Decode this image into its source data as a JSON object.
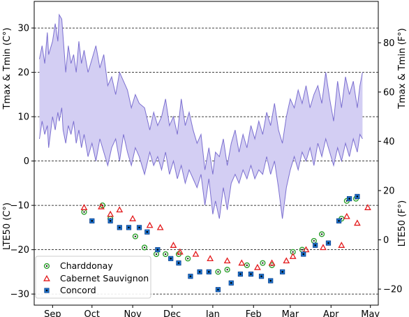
{
  "chart_data": {
    "type": "scatter",
    "y_axis_left": {
      "label": "Tmax & Tmin (C°) / LTE50 (C°)",
      "label_upper": "Tmax & Tmin (C°)",
      "label_lower": "LTE50 (C°)",
      "ticks": [
        30,
        20,
        10,
        0,
        -10,
        -20,
        -30
      ],
      "tick_labels": [
        "30",
        "20",
        "10",
        "0",
        "−10",
        "−20",
        "−30"
      ],
      "ylim": [
        -32.5,
        36
      ]
    },
    "y_axis_right": {
      "label_upper": "Tmax & Tmin (F°)",
      "label_lower": "LTE50 (F°)",
      "ticks_f": [
        80,
        60,
        40,
        20,
        0,
        -20
      ],
      "tick_labels": [
        "80",
        "60",
        "40",
        "20",
        "0",
        "−20"
      ]
    },
    "x_axis": {
      "tick_labels": [
        "Sep",
        "Oct",
        "Nov",
        "Dec",
        "Jan",
        "Feb",
        "Mar",
        "Apr",
        "May"
      ],
      "tick_days": [
        0,
        30,
        61,
        91,
        122,
        153,
        181,
        212,
        242
      ],
      "xlim": [
        -14,
        248
      ]
    },
    "grid": "horizontal dashed at y ticks",
    "temperature_band": {
      "color": "#7b6fd0",
      "fill": "#d3cef3",
      "points": [
        {
          "day": -10,
          "tmin": 5,
          "tmax": 23
        },
        {
          "day": -8,
          "tmin": 9,
          "tmax": 26
        },
        {
          "day": -6,
          "tmin": 6,
          "tmax": 22
        },
        {
          "day": -4,
          "tmin": 8,
          "tmax": 29
        },
        {
          "day": -3,
          "tmin": 3,
          "tmax": 24
        },
        {
          "day": 0,
          "tmin": 10,
          "tmax": 27
        },
        {
          "day": 2,
          "tmin": 7,
          "tmax": 31
        },
        {
          "day": 4,
          "tmin": 11,
          "tmax": 27
        },
        {
          "day": 5,
          "tmin": 9,
          "tmax": 33
        },
        {
          "day": 7,
          "tmin": 12,
          "tmax": 32
        },
        {
          "day": 8,
          "tmin": 7,
          "tmax": 28
        },
        {
          "day": 10,
          "tmin": 4,
          "tmax": 20
        },
        {
          "day": 12,
          "tmin": 8,
          "tmax": 26
        },
        {
          "day": 14,
          "tmin": 6,
          "tmax": 22
        },
        {
          "day": 16,
          "tmin": 9,
          "tmax": 24
        },
        {
          "day": 18,
          "tmin": 4,
          "tmax": 20
        },
        {
          "day": 20,
          "tmin": 7,
          "tmax": 27
        },
        {
          "day": 22,
          "tmin": 3,
          "tmax": 22
        },
        {
          "day": 24,
          "tmin": 6,
          "tmax": 25
        },
        {
          "day": 27,
          "tmin": 1,
          "tmax": 20
        },
        {
          "day": 30,
          "tmin": 4,
          "tmax": 23
        },
        {
          "day": 33,
          "tmin": 0,
          "tmax": 26
        },
        {
          "day": 36,
          "tmin": 5,
          "tmax": 21
        },
        {
          "day": 39,
          "tmin": 2,
          "tmax": 24
        },
        {
          "day": 42,
          "tmin": -1,
          "tmax": 17
        },
        {
          "day": 45,
          "tmin": 3,
          "tmax": 19
        },
        {
          "day": 48,
          "tmin": 5,
          "tmax": 15
        },
        {
          "day": 51,
          "tmin": 0,
          "tmax": 20
        },
        {
          "day": 54,
          "tmin": 6,
          "tmax": 18
        },
        {
          "day": 57,
          "tmin": 2,
          "tmax": 16
        },
        {
          "day": 60,
          "tmin": -1,
          "tmax": 12
        },
        {
          "day": 63,
          "tmin": 3,
          "tmax": 15
        },
        {
          "day": 66,
          "tmin": 1,
          "tmax": 13
        },
        {
          "day": 70,
          "tmin": -3,
          "tmax": 12
        },
        {
          "day": 74,
          "tmin": 2,
          "tmax": 7
        },
        {
          "day": 77,
          "tmin": -1,
          "tmax": 11
        },
        {
          "day": 80,
          "tmin": 1,
          "tmax": 8
        },
        {
          "day": 83,
          "tmin": -2,
          "tmax": 10
        },
        {
          "day": 86,
          "tmin": 2,
          "tmax": 14
        },
        {
          "day": 89,
          "tmin": -3,
          "tmax": 8
        },
        {
          "day": 92,
          "tmin": 0,
          "tmax": 10
        },
        {
          "day": 95,
          "tmin": -4,
          "tmax": 6
        },
        {
          "day": 98,
          "tmin": -1,
          "tmax": 14
        },
        {
          "day": 101,
          "tmin": -5,
          "tmax": 8
        },
        {
          "day": 104,
          "tmin": -2,
          "tmax": 11
        },
        {
          "day": 107,
          "tmin": -4,
          "tmax": 7
        },
        {
          "day": 110,
          "tmin": -6,
          "tmax": 4
        },
        {
          "day": 113,
          "tmin": -3,
          "tmax": 6
        },
        {
          "day": 116,
          "tmin": -10,
          "tmax": -2
        },
        {
          "day": 119,
          "tmin": -4,
          "tmax": 3
        },
        {
          "day": 122,
          "tmin": -12,
          "tmax": -3
        },
        {
          "day": 124,
          "tmin": -9,
          "tmax": 2
        },
        {
          "day": 127,
          "tmin": -13,
          "tmax": 1
        },
        {
          "day": 130,
          "tmin": -6,
          "tmax": 5
        },
        {
          "day": 133,
          "tmin": -11,
          "tmax": -1
        },
        {
          "day": 136,
          "tmin": -5,
          "tmax": 4
        },
        {
          "day": 139,
          "tmin": -3,
          "tmax": 7
        },
        {
          "day": 142,
          "tmin": -5,
          "tmax": 2
        },
        {
          "day": 145,
          "tmin": -2,
          "tmax": 6
        },
        {
          "day": 148,
          "tmin": -4,
          "tmax": 3
        },
        {
          "day": 151,
          "tmin": -1,
          "tmax": 8
        },
        {
          "day": 154,
          "tmin": -4,
          "tmax": 5
        },
        {
          "day": 157,
          "tmin": -2,
          "tmax": 9
        },
        {
          "day": 160,
          "tmin": -3,
          "tmax": 6
        },
        {
          "day": 163,
          "tmin": 1,
          "tmax": 11
        },
        {
          "day": 166,
          "tmin": -3,
          "tmax": 8
        },
        {
          "day": 169,
          "tmin": 0,
          "tmax": 13
        },
        {
          "day": 172,
          "tmin": -6,
          "tmax": 7
        },
        {
          "day": 175,
          "tmin": -13,
          "tmax": 4
        },
        {
          "day": 178,
          "tmin": -6,
          "tmax": 10
        },
        {
          "day": 181,
          "tmin": -2,
          "tmax": 14
        },
        {
          "day": 184,
          "tmin": 1,
          "tmax": 12
        },
        {
          "day": 187,
          "tmin": -2,
          "tmax": 16
        },
        {
          "day": 190,
          "tmin": 2,
          "tmax": 13
        },
        {
          "day": 193,
          "tmin": 0,
          "tmax": 17
        },
        {
          "day": 196,
          "tmin": 3,
          "tmax": 12
        },
        {
          "day": 199,
          "tmin": -1,
          "tmax": 15
        },
        {
          "day": 202,
          "tmin": 4,
          "tmax": 17
        },
        {
          "day": 205,
          "tmin": 1,
          "tmax": 13
        },
        {
          "day": 208,
          "tmin": 5,
          "tmax": 20
        },
        {
          "day": 211,
          "tmin": 2,
          "tmax": 14
        },
        {
          "day": 214,
          "tmin": -1,
          "tmax": 9
        },
        {
          "day": 217,
          "tmin": 3,
          "tmax": 18
        },
        {
          "day": 220,
          "tmin": 0,
          "tmax": 12
        },
        {
          "day": 223,
          "tmin": 4,
          "tmax": 19
        },
        {
          "day": 226,
          "tmin": 1,
          "tmax": 15
        },
        {
          "day": 229,
          "tmin": 5,
          "tmax": 18
        },
        {
          "day": 232,
          "tmin": 2,
          "tmax": 12
        },
        {
          "day": 234,
          "tmin": 6,
          "tmax": 17
        },
        {
          "day": 236,
          "tmin": 5,
          "tmax": 20
        }
      ]
    },
    "series": [
      {
        "name": "Charddonay",
        "marker": "circle",
        "color": "#2ca02c",
        "points": [
          {
            "day": 24,
            "y": -11.5
          },
          {
            "day": 38,
            "y": -10.0
          },
          {
            "day": 44,
            "y": -13.0
          },
          {
            "day": 63,
            "y": -17.0
          },
          {
            "day": 70,
            "y": -19.5
          },
          {
            "day": 79,
            "y": -21.0
          },
          {
            "day": 86,
            "y": -21.0
          },
          {
            "day": 96,
            "y": -21.0
          },
          {
            "day": 103,
            "y": -22.0
          },
          {
            "day": 126,
            "y": -25.0
          },
          {
            "day": 133,
            "y": -24.5
          },
          {
            "day": 148,
            "y": -23.5
          },
          {
            "day": 160,
            "y": -23.0
          },
          {
            "day": 167,
            "y": -23.5
          },
          {
            "day": 183,
            "y": -20.5
          },
          {
            "day": 190,
            "y": -20.0
          },
          {
            "day": 199,
            "y": -18.0
          },
          {
            "day": 205,
            "y": -16.5
          },
          {
            "day": 220,
            "y": -13.0
          },
          {
            "day": 224,
            "y": -9.0
          },
          {
            "day": 231,
            "y": -8.5
          }
        ]
      },
      {
        "name": "Cabernet Sauvignon",
        "marker": "triangle",
        "color": "#e31a1c",
        "points": [
          {
            "day": 24,
            "y": -10.5
          },
          {
            "day": 37,
            "y": -10.3
          },
          {
            "day": 44,
            "y": -12.0
          },
          {
            "day": 51,
            "y": -11.0
          },
          {
            "day": 61,
            "y": -13.0
          },
          {
            "day": 74,
            "y": -14.5
          },
          {
            "day": 82,
            "y": -15.0
          },
          {
            "day": 92,
            "y": -19.0
          },
          {
            "day": 97,
            "y": -20.5
          },
          {
            "day": 109,
            "y": -21.0
          },
          {
            "day": 120,
            "y": -22.0
          },
          {
            "day": 133,
            "y": -22.5
          },
          {
            "day": 144,
            "y": -23.0
          },
          {
            "day": 156,
            "y": -24.0
          },
          {
            "day": 167,
            "y": -23.0
          },
          {
            "day": 178,
            "y": -22.5
          },
          {
            "day": 183,
            "y": -21.5
          },
          {
            "day": 193,
            "y": -20.0
          },
          {
            "day": 206,
            "y": -19.5
          },
          {
            "day": 220,
            "y": -19.0
          },
          {
            "day": 224,
            "y": -12.5
          },
          {
            "day": 232,
            "y": -14.0
          },
          {
            "day": 240,
            "y": -10.5
          }
        ]
      },
      {
        "name": "Concord",
        "marker": "square",
        "color": "#1f77d4",
        "points": [
          {
            "day": 30,
            "y": -13.5
          },
          {
            "day": 44,
            "y": -13.5
          },
          {
            "day": 51,
            "y": -15.0
          },
          {
            "day": 58,
            "y": -15.0
          },
          {
            "day": 66,
            "y": -15.0
          },
          {
            "day": 72,
            "y": -16.0
          },
          {
            "day": 80,
            "y": -20.0
          },
          {
            "day": 90,
            "y": -22.0
          },
          {
            "day": 96,
            "y": -23.0
          },
          {
            "day": 105,
            "y": -26.0
          },
          {
            "day": 112,
            "y": -25.0
          },
          {
            "day": 119,
            "y": -25.0
          },
          {
            "day": 126,
            "y": -29.0
          },
          {
            "day": 136,
            "y": -27.5
          },
          {
            "day": 143,
            "y": -25.5
          },
          {
            "day": 151,
            "y": -25.5
          },
          {
            "day": 159,
            "y": -26.0
          },
          {
            "day": 166,
            "y": -27.0
          },
          {
            "day": 175,
            "y": -25.0
          },
          {
            "day": 191,
            "y": -21.0
          },
          {
            "day": 200,
            "y": -19.0
          },
          {
            "day": 210,
            "y": -18.5
          },
          {
            "day": 218,
            "y": -13.5
          },
          {
            "day": 226,
            "y": -8.5
          },
          {
            "day": 232,
            "y": -8.0
          }
        ]
      }
    ],
    "legend": {
      "placement": "lower-left",
      "entries": [
        "Charddonay",
        "Cabernet Sauvignon",
        "Concord"
      ]
    }
  }
}
